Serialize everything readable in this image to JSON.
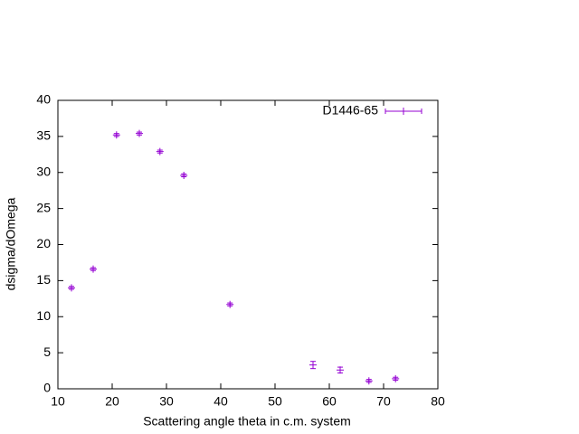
{
  "chart_data": {
    "type": "scatter",
    "x_label": "Scattering angle theta in c.m. system",
    "y_label": "dsigma/dOmega",
    "xlim": [
      10,
      80
    ],
    "xticks": [
      10,
      20,
      30,
      40,
      50,
      60,
      70,
      80
    ],
    "ylim": [
      0,
      40
    ],
    "yticks": [
      0,
      5,
      10,
      15,
      20,
      25,
      30,
      35,
      40
    ],
    "legend": "top-right",
    "series": [
      {
        "name": "D1446-65",
        "color": "#9400d3",
        "x": [
          12.5,
          16.5,
          20.8,
          25,
          28.8,
          33.2,
          41.7,
          57,
          62,
          67.3,
          72.2
        ],
        "values": [
          14.0,
          16.6,
          35.2,
          35.4,
          32.9,
          29.6,
          11.7,
          3.3,
          2.6,
          1.1,
          1.4
        ],
        "errors": [
          0.2,
          0.2,
          0.2,
          0.2,
          0.2,
          0.2,
          0.2,
          0.5,
          0.4,
          0.2,
          0.2
        ]
      }
    ]
  }
}
